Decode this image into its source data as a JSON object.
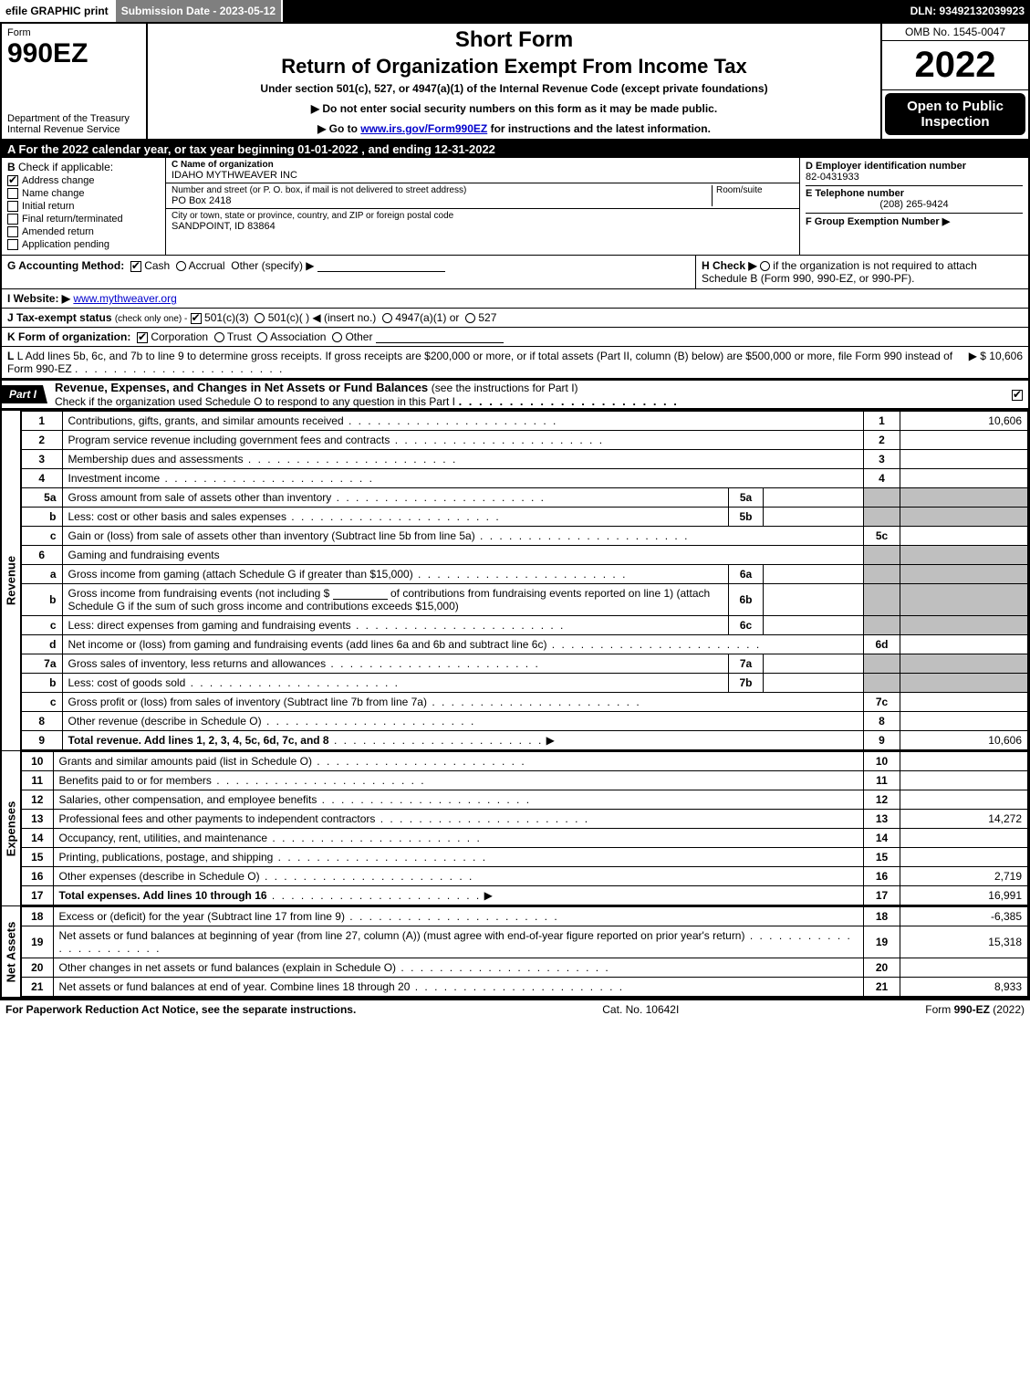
{
  "topbar": {
    "efile": "efile GRAPHIC print",
    "subdate": "Submission Date - 2023-05-12",
    "dln": "DLN: 93492132039923"
  },
  "header": {
    "form_label": "Form",
    "form_number": "990EZ",
    "dept": "Department of the Treasury\nInternal Revenue Service",
    "short": "Short Form",
    "title": "Return of Organization Exempt From Income Tax",
    "sub": "Under section 501(c), 527, or 4947(a)(1) of the Internal Revenue Code (except private foundations)",
    "arrow1": "▶ Do not enter social security numbers on this form as it may be made public.",
    "arrow2_pre": "▶ Go to ",
    "arrow2_link": "www.irs.gov/Form990EZ",
    "arrow2_post": " for instructions and the latest information.",
    "omb": "OMB No. 1545-0047",
    "year": "2022",
    "open": "Open to Public Inspection"
  },
  "section_a": "A  For the 2022 calendar year, or tax year beginning 01-01-2022  , and ending 12-31-2022",
  "section_b": {
    "label": "B",
    "check_label": "Check if applicable:",
    "items": [
      {
        "label": "Address change",
        "checked": true
      },
      {
        "label": "Name change",
        "checked": false
      },
      {
        "label": "Initial return",
        "checked": false
      },
      {
        "label": "Final return/terminated",
        "checked": false
      },
      {
        "label": "Amended return",
        "checked": false
      },
      {
        "label": "Application pending",
        "checked": false
      }
    ]
  },
  "section_c": {
    "name_label": "C Name of organization",
    "name": "IDAHO MYTHWEAVER INC",
    "street_label": "Number and street (or P. O. box, if mail is not delivered to street address)",
    "room_label": "Room/suite",
    "street": "PO Box 2418",
    "city_label": "City or town, state or province, country, and ZIP or foreign postal code",
    "city": "SANDPOINT, ID  83864"
  },
  "section_d": {
    "ein_label": "D Employer identification number",
    "ein": "82-0431933",
    "tel_label": "E Telephone number",
    "tel": "(208) 265-9424",
    "group_label": "F Group Exemption Number    ▶"
  },
  "section_g": {
    "label": "G Accounting Method:",
    "cash": "Cash",
    "accrual": "Accrual",
    "other": "Other (specify) ▶"
  },
  "section_h": {
    "text": "H  Check ▶",
    "rest": "if the organization is not required to attach Schedule B (Form 990, 990-EZ, or 990-PF)."
  },
  "section_i": {
    "label": "I Website: ▶",
    "url": "www.mythweaver.org"
  },
  "section_j": {
    "label": "J Tax-exempt status",
    "sub": "(check only one) -",
    "opt1": "501(c)(3)",
    "opt2": "501(c)(  ) ◀ (insert no.)",
    "opt3": "4947(a)(1) or",
    "opt4": "527"
  },
  "section_k": {
    "label": "K Form of organization:",
    "opts": [
      "Corporation",
      "Trust",
      "Association",
      "Other"
    ]
  },
  "section_l": {
    "text": "L Add lines 5b, 6c, and 7b to line 9 to determine gross receipts. If gross receipts are $200,000 or more, or if total assets (Part II, column (B) below) are $500,000 or more, file Form 990 instead of Form 990-EZ",
    "amount": "▶ $ 10,606"
  },
  "part1": {
    "tab": "Part I",
    "title": "Revenue, Expenses, and Changes in Net Assets or Fund Balances",
    "sub": "(see the instructions for Part I)",
    "check_line": "Check if the organization used Schedule O to respond to any question in this Part I"
  },
  "revenue": [
    {
      "n": "1",
      "desc": "Contributions, gifts, grants, and similar amounts received",
      "ln": "1",
      "amt": "10,606"
    },
    {
      "n": "2",
      "desc": "Program service revenue including government fees and contracts",
      "ln": "2",
      "amt": ""
    },
    {
      "n": "3",
      "desc": "Membership dues and assessments",
      "ln": "3",
      "amt": ""
    },
    {
      "n": "4",
      "desc": "Investment income",
      "ln": "4",
      "amt": ""
    }
  ],
  "line5": {
    "a": {
      "n": "5a",
      "desc": "Gross amount from sale of assets other than inventory",
      "mid": "5a"
    },
    "b": {
      "n": "b",
      "desc": "Less: cost or other basis and sales expenses",
      "mid": "5b"
    },
    "c": {
      "n": "c",
      "desc": "Gain or (loss) from sale of assets other than inventory (Subtract line 5b from line 5a)",
      "ln": "5c"
    }
  },
  "line6": {
    "hdr": {
      "n": "6",
      "desc": "Gaming and fundraising events"
    },
    "a": {
      "n": "a",
      "desc": "Gross income from gaming (attach Schedule G if greater than $15,000)",
      "mid": "6a"
    },
    "b": {
      "n": "b",
      "desc1": "Gross income from fundraising events (not including $",
      "desc2": "of contributions from fundraising events reported on line 1) (attach Schedule G if the sum of such gross income and contributions exceeds $15,000)",
      "mid": "6b"
    },
    "c": {
      "n": "c",
      "desc": "Less: direct expenses from gaming and fundraising events",
      "mid": "6c"
    },
    "d": {
      "n": "d",
      "desc": "Net income or (loss) from gaming and fundraising events (add lines 6a and 6b and subtract line 6c)",
      "ln": "6d"
    }
  },
  "line7": {
    "a": {
      "n": "7a",
      "desc": "Gross sales of inventory, less returns and allowances",
      "mid": "7a"
    },
    "b": {
      "n": "b",
      "desc": "Less: cost of goods sold",
      "mid": "7b"
    },
    "c": {
      "n": "c",
      "desc": "Gross profit or (loss) from sales of inventory (Subtract line 7b from line 7a)",
      "ln": "7c"
    }
  },
  "line8": {
    "n": "8",
    "desc": "Other revenue (describe in Schedule O)",
    "ln": "8",
    "amt": ""
  },
  "line9": {
    "n": "9",
    "desc": "Total revenue. Add lines 1, 2, 3, 4, 5c, 6d, 7c, and 8",
    "ln": "9",
    "amt": "10,606"
  },
  "expenses": [
    {
      "n": "10",
      "desc": "Grants and similar amounts paid (list in Schedule O)",
      "ln": "10",
      "amt": ""
    },
    {
      "n": "11",
      "desc": "Benefits paid to or for members",
      "ln": "11",
      "amt": ""
    },
    {
      "n": "12",
      "desc": "Salaries, other compensation, and employee benefits",
      "ln": "12",
      "amt": ""
    },
    {
      "n": "13",
      "desc": "Professional fees and other payments to independent contractors",
      "ln": "13",
      "amt": "14,272"
    },
    {
      "n": "14",
      "desc": "Occupancy, rent, utilities, and maintenance",
      "ln": "14",
      "amt": ""
    },
    {
      "n": "15",
      "desc": "Printing, publications, postage, and shipping",
      "ln": "15",
      "amt": ""
    },
    {
      "n": "16",
      "desc": "Other expenses (describe in Schedule O)",
      "ln": "16",
      "amt": "2,719"
    },
    {
      "n": "17",
      "desc": "Total expenses. Add lines 10 through 16",
      "ln": "17",
      "amt": "16,991",
      "bold": true
    }
  ],
  "netassets": [
    {
      "n": "18",
      "desc": "Excess or (deficit) for the year (Subtract line 17 from line 9)",
      "ln": "18",
      "amt": "-6,385"
    },
    {
      "n": "19",
      "desc": "Net assets or fund balances at beginning of year (from line 27, column (A)) (must agree with end-of-year figure reported on prior year's return)",
      "ln": "19",
      "amt": "15,318"
    },
    {
      "n": "20",
      "desc": "Other changes in net assets or fund balances (explain in Schedule O)",
      "ln": "20",
      "amt": ""
    },
    {
      "n": "21",
      "desc": "Net assets or fund balances at end of year. Combine lines 18 through 20",
      "ln": "21",
      "amt": "8,933"
    }
  ],
  "vlabels": {
    "revenue": "Revenue",
    "expenses": "Expenses",
    "netassets": "Net Assets"
  },
  "footer": {
    "left": "For Paperwork Reduction Act Notice, see the separate instructions.",
    "mid": "Cat. No. 10642I",
    "right_pre": "Form ",
    "right_bold": "990-EZ",
    "right_post": " (2022)"
  }
}
